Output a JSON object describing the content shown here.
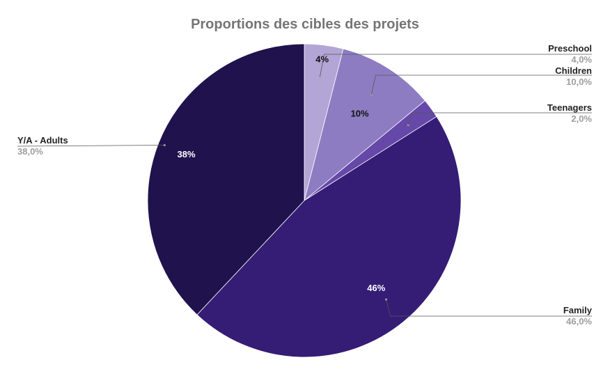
{
  "chart_data": {
    "type": "pie",
    "title": "Proportions des cibles des projets",
    "slices": [
      {
        "label": "Preschool",
        "value": 4.0,
        "value_text": "4,0%",
        "pct_text": "4%",
        "color": "#b3a5d6",
        "text_color": "#111111"
      },
      {
        "label": "Children",
        "value": 10.0,
        "value_text": "10,0%",
        "pct_text": "10%",
        "color": "#8e7cc3",
        "text_color": "#111111"
      },
      {
        "label": "Teenagers",
        "value": 2.0,
        "value_text": "2,0%",
        "pct_text": "",
        "color": "#6548a8",
        "text_color": "#ffffff"
      },
      {
        "label": "Family",
        "value": 46.0,
        "value_text": "46,0%",
        "pct_text": "46%",
        "color": "#351c75",
        "text_color": "#ffffff"
      },
      {
        "label": "Y/A - Adults",
        "value": 38.0,
        "value_text": "38,0%",
        "pct_text": "38%",
        "color": "#20124d",
        "text_color": "#ffffff"
      }
    ],
    "legend": "callouts"
  }
}
